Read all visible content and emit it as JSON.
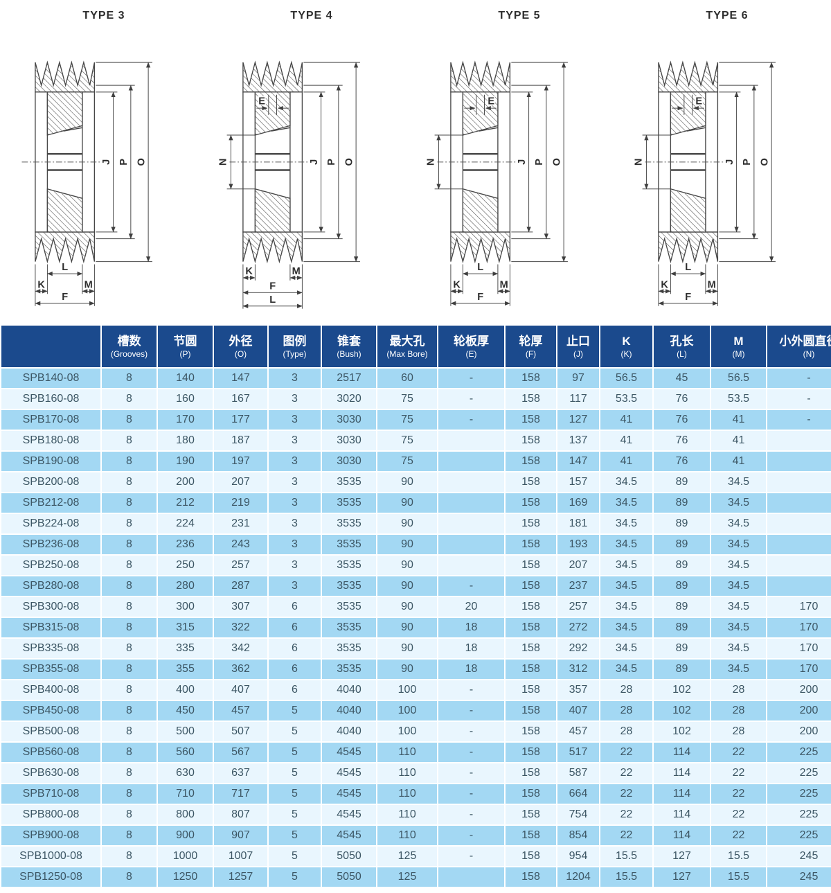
{
  "diagrams": [
    {
      "title": "TYPE 3",
      "dims": {
        "J": "J",
        "P": "P",
        "O": "O",
        "L": "L",
        "K": "K",
        "M": "M",
        "F": "F"
      }
    },
    {
      "title": "TYPE 4",
      "dims": {
        "J": "J",
        "P": "P",
        "O": "O",
        "L": "L",
        "K": "K",
        "M": "M",
        "F": "F",
        "E": "E",
        "N": "N"
      }
    },
    {
      "title": "TYPE 5",
      "dims": {
        "J": "J",
        "P": "P",
        "O": "O",
        "L": "L",
        "K": "K",
        "M": "M",
        "F": "F",
        "E": "E",
        "N": "N"
      }
    },
    {
      "title": "TYPE 6",
      "dims": {
        "J": "J",
        "P": "P",
        "O": "O",
        "L": "L",
        "K": "K",
        "M": "M",
        "F": "F",
        "E": "E",
        "N": "N"
      }
    }
  ],
  "colors": {
    "header_bg": "#1b4a8d",
    "row_dark": "#a3d8f3",
    "row_light": "#e9f6fe",
    "cell_text": "#3c5664",
    "drawing_line": "#474747"
  },
  "table": {
    "columns": [
      {
        "zh": "",
        "en": ""
      },
      {
        "zh": "槽数",
        "en": "(Grooves)"
      },
      {
        "zh": "节圆",
        "en": "(P)"
      },
      {
        "zh": "外径",
        "en": "(O)"
      },
      {
        "zh": "图例",
        "en": "(Type)"
      },
      {
        "zh": "锥套",
        "en": "(Bush)"
      },
      {
        "zh": "最大孔",
        "en": "(Max Bore)"
      },
      {
        "zh": "轮板厚",
        "en": "(E)"
      },
      {
        "zh": "轮厚",
        "en": "(F)"
      },
      {
        "zh": "止口",
        "en": "(J)"
      },
      {
        "zh": "K",
        "en": "(K)"
      },
      {
        "zh": "孔长",
        "en": "(L)"
      },
      {
        "zh": "M",
        "en": "(M)"
      },
      {
        "zh": "小外圆直径",
        "en": "(N)"
      }
    ],
    "rows": [
      [
        "SPB140-08",
        "8",
        "140",
        "147",
        "3",
        "2517",
        "60",
        "-",
        "158",
        "97",
        "56.5",
        "45",
        "56.5",
        "-"
      ],
      [
        "SPB160-08",
        "8",
        "160",
        "167",
        "3",
        "3020",
        "75",
        "-",
        "158",
        "117",
        "53.5",
        "76",
        "53.5",
        "-"
      ],
      [
        "SPB170-08",
        "8",
        "170",
        "177",
        "3",
        "3030",
        "75",
        "-",
        "158",
        "127",
        "41",
        "76",
        "41",
        "-"
      ],
      [
        "SPB180-08",
        "8",
        "180",
        "187",
        "3",
        "3030",
        "75",
        "",
        "158",
        "137",
        "41",
        "76",
        "41",
        ""
      ],
      [
        "SPB190-08",
        "8",
        "190",
        "197",
        "3",
        "3030",
        "75",
        "",
        "158",
        "147",
        "41",
        "76",
        "41",
        ""
      ],
      [
        "SPB200-08",
        "8",
        "200",
        "207",
        "3",
        "3535",
        "90",
        "",
        "158",
        "157",
        "34.5",
        "89",
        "34.5",
        ""
      ],
      [
        "SPB212-08",
        "8",
        "212",
        "219",
        "3",
        "3535",
        "90",
        "",
        "158",
        "169",
        "34.5",
        "89",
        "34.5",
        ""
      ],
      [
        "SPB224-08",
        "8",
        "224",
        "231",
        "3",
        "3535",
        "90",
        "",
        "158",
        "181",
        "34.5",
        "89",
        "34.5",
        ""
      ],
      [
        "SPB236-08",
        "8",
        "236",
        "243",
        "3",
        "3535",
        "90",
        "",
        "158",
        "193",
        "34.5",
        "89",
        "34.5",
        ""
      ],
      [
        "SPB250-08",
        "8",
        "250",
        "257",
        "3",
        "3535",
        "90",
        "",
        "158",
        "207",
        "34.5",
        "89",
        "34.5",
        ""
      ],
      [
        "SPB280-08",
        "8",
        "280",
        "287",
        "3",
        "3535",
        "90",
        "-",
        "158",
        "237",
        "34.5",
        "89",
        "34.5",
        ""
      ],
      [
        "SPB300-08",
        "8",
        "300",
        "307",
        "6",
        "3535",
        "90",
        "20",
        "158",
        "257",
        "34.5",
        "89",
        "34.5",
        "170"
      ],
      [
        "SPB315-08",
        "8",
        "315",
        "322",
        "6",
        "3535",
        "90",
        "18",
        "158",
        "272",
        "34.5",
        "89",
        "34.5",
        "170"
      ],
      [
        "SPB335-08",
        "8",
        "335",
        "342",
        "6",
        "3535",
        "90",
        "18",
        "158",
        "292",
        "34.5",
        "89",
        "34.5",
        "170"
      ],
      [
        "SPB355-08",
        "8",
        "355",
        "362",
        "6",
        "3535",
        "90",
        "18",
        "158",
        "312",
        "34.5",
        "89",
        "34.5",
        "170"
      ],
      [
        "SPB400-08",
        "8",
        "400",
        "407",
        "6",
        "4040",
        "100",
        "-",
        "158",
        "357",
        "28",
        "102",
        "28",
        "200"
      ],
      [
        "SPB450-08",
        "8",
        "450",
        "457",
        "5",
        "4040",
        "100",
        "-",
        "158",
        "407",
        "28",
        "102",
        "28",
        "200"
      ],
      [
        "SPB500-08",
        "8",
        "500",
        "507",
        "5",
        "4040",
        "100",
        "-",
        "158",
        "457",
        "28",
        "102",
        "28",
        "200"
      ],
      [
        "SPB560-08",
        "8",
        "560",
        "567",
        "5",
        "4545",
        "110",
        "-",
        "158",
        "517",
        "22",
        "114",
        "22",
        "225"
      ],
      [
        "SPB630-08",
        "8",
        "630",
        "637",
        "5",
        "4545",
        "110",
        "-",
        "158",
        "587",
        "22",
        "114",
        "22",
        "225"
      ],
      [
        "SPB710-08",
        "8",
        "710",
        "717",
        "5",
        "4545",
        "110",
        "-",
        "158",
        "664",
        "22",
        "114",
        "22",
        "225"
      ],
      [
        "SPB800-08",
        "8",
        "800",
        "807",
        "5",
        "4545",
        "110",
        "-",
        "158",
        "754",
        "22",
        "114",
        "22",
        "225"
      ],
      [
        "SPB900-08",
        "8",
        "900",
        "907",
        "5",
        "4545",
        "110",
        "-",
        "158",
        "854",
        "22",
        "114",
        "22",
        "225"
      ],
      [
        "SPB1000-08",
        "8",
        "1000",
        "1007",
        "5",
        "5050",
        "125",
        "-",
        "158",
        "954",
        "15.5",
        "127",
        "15.5",
        "245"
      ],
      [
        "SPB1250-08",
        "8",
        "1250",
        "1257",
        "5",
        "5050",
        "125",
        "",
        "158",
        "1204",
        "15.5",
        "127",
        "15.5",
        "245"
      ]
    ]
  }
}
